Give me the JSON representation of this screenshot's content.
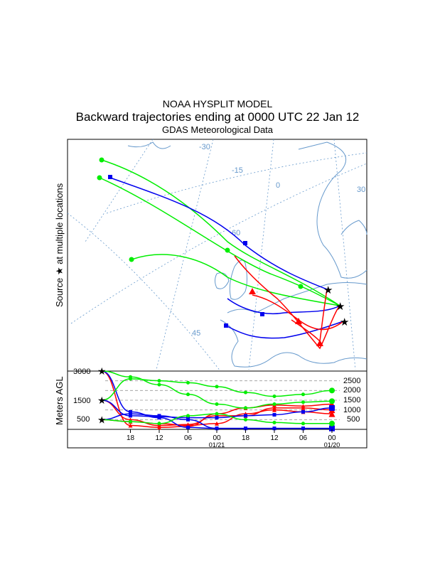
{
  "header": {
    "title_line1": "NOAA HYSPLIT MODEL",
    "title_line2": "Backward trajectories ending at 0000 UTC 22 Jan 12",
    "title_line3": "GDAS Meteorological Data"
  },
  "map": {
    "side_label_source": "Source",
    "side_label_rest": "at multiple locations",
    "grid_labels": [
      "-30",
      "-15",
      "0",
      "30",
      "60",
      "45"
    ],
    "end_symbol": "star"
  },
  "colors": {
    "red": "#ff0000",
    "blue": "#0000ee",
    "green": "#00ee00",
    "grid": "#6699cc",
    "coast": "#6699cc"
  },
  "chart_data": {
    "type": "line",
    "title": "Backward trajectories ending at 0000 UTC 22 Jan 12",
    "ylabel": "Meters AGL",
    "left_axis_labels": [
      "3000",
      "1500",
      "500"
    ],
    "right_axis_labels": [
      "2500",
      "2000",
      "1500",
      "1000",
      "500"
    ],
    "ylim": [
      0,
      3000
    ],
    "x_ticks": [
      "18",
      "12",
      "06",
      "00",
      "18",
      "12",
      "06",
      "00"
    ],
    "date_labels": [
      {
        "under_tick": 3,
        "text": "01/21"
      },
      {
        "under_tick": 7,
        "text": "01/20"
      }
    ],
    "x_hours_ago": [
      0,
      6,
      12,
      18,
      24,
      30,
      36,
      42,
      48
    ],
    "series": [
      {
        "name": "red 500 m",
        "color": "red",
        "marker": "triangle",
        "start_height": 500,
        "values": [
          500,
          400,
          300,
          200,
          300,
          800,
          1000,
          900,
          800
        ]
      },
      {
        "name": "red 1500 m",
        "color": "red",
        "marker": "triangle",
        "start_height": 1500,
        "values": [
          1500,
          500,
          200,
          250,
          700,
          700,
          1100,
          1100,
          1000
        ]
      },
      {
        "name": "red 3000 m",
        "color": "red",
        "marker": "triangle",
        "start_height": 3000,
        "values": [
          3000,
          200,
          100,
          150,
          800,
          1100,
          1250,
          1200,
          1300
        ]
      },
      {
        "name": "blue 500 m",
        "color": "blue",
        "marker": "square",
        "start_height": 500,
        "values": [
          500,
          800,
          700,
          500,
          50,
          50,
          50,
          50,
          50
        ]
      },
      {
        "name": "blue 1500 m",
        "color": "blue",
        "marker": "square",
        "start_height": 1500,
        "values": [
          1500,
          700,
          650,
          600,
          600,
          700,
          750,
          900,
          1100
        ]
      },
      {
        "name": "blue 3000 m",
        "color": "blue",
        "marker": "square",
        "start_height": 3000,
        "values": [
          3000,
          900,
          600,
          100,
          50,
          50,
          50,
          50,
          50
        ]
      },
      {
        "name": "green 500 m",
        "color": "green",
        "marker": "circle",
        "start_height": 500,
        "values": [
          500,
          400,
          300,
          700,
          800,
          500,
          350,
          300,
          300
        ]
      },
      {
        "name": "green 1500 m",
        "color": "green",
        "marker": "circle",
        "start_height": 1500,
        "values": [
          1500,
          2600,
          2500,
          2400,
          2200,
          1900,
          1700,
          1800,
          2000
        ]
      },
      {
        "name": "green 3000 m",
        "color": "green",
        "marker": "circle",
        "start_height": 3000,
        "values": [
          3000,
          2700,
          2300,
          1800,
          1300,
          1100,
          1300,
          1400,
          1450
        ]
      }
    ]
  }
}
